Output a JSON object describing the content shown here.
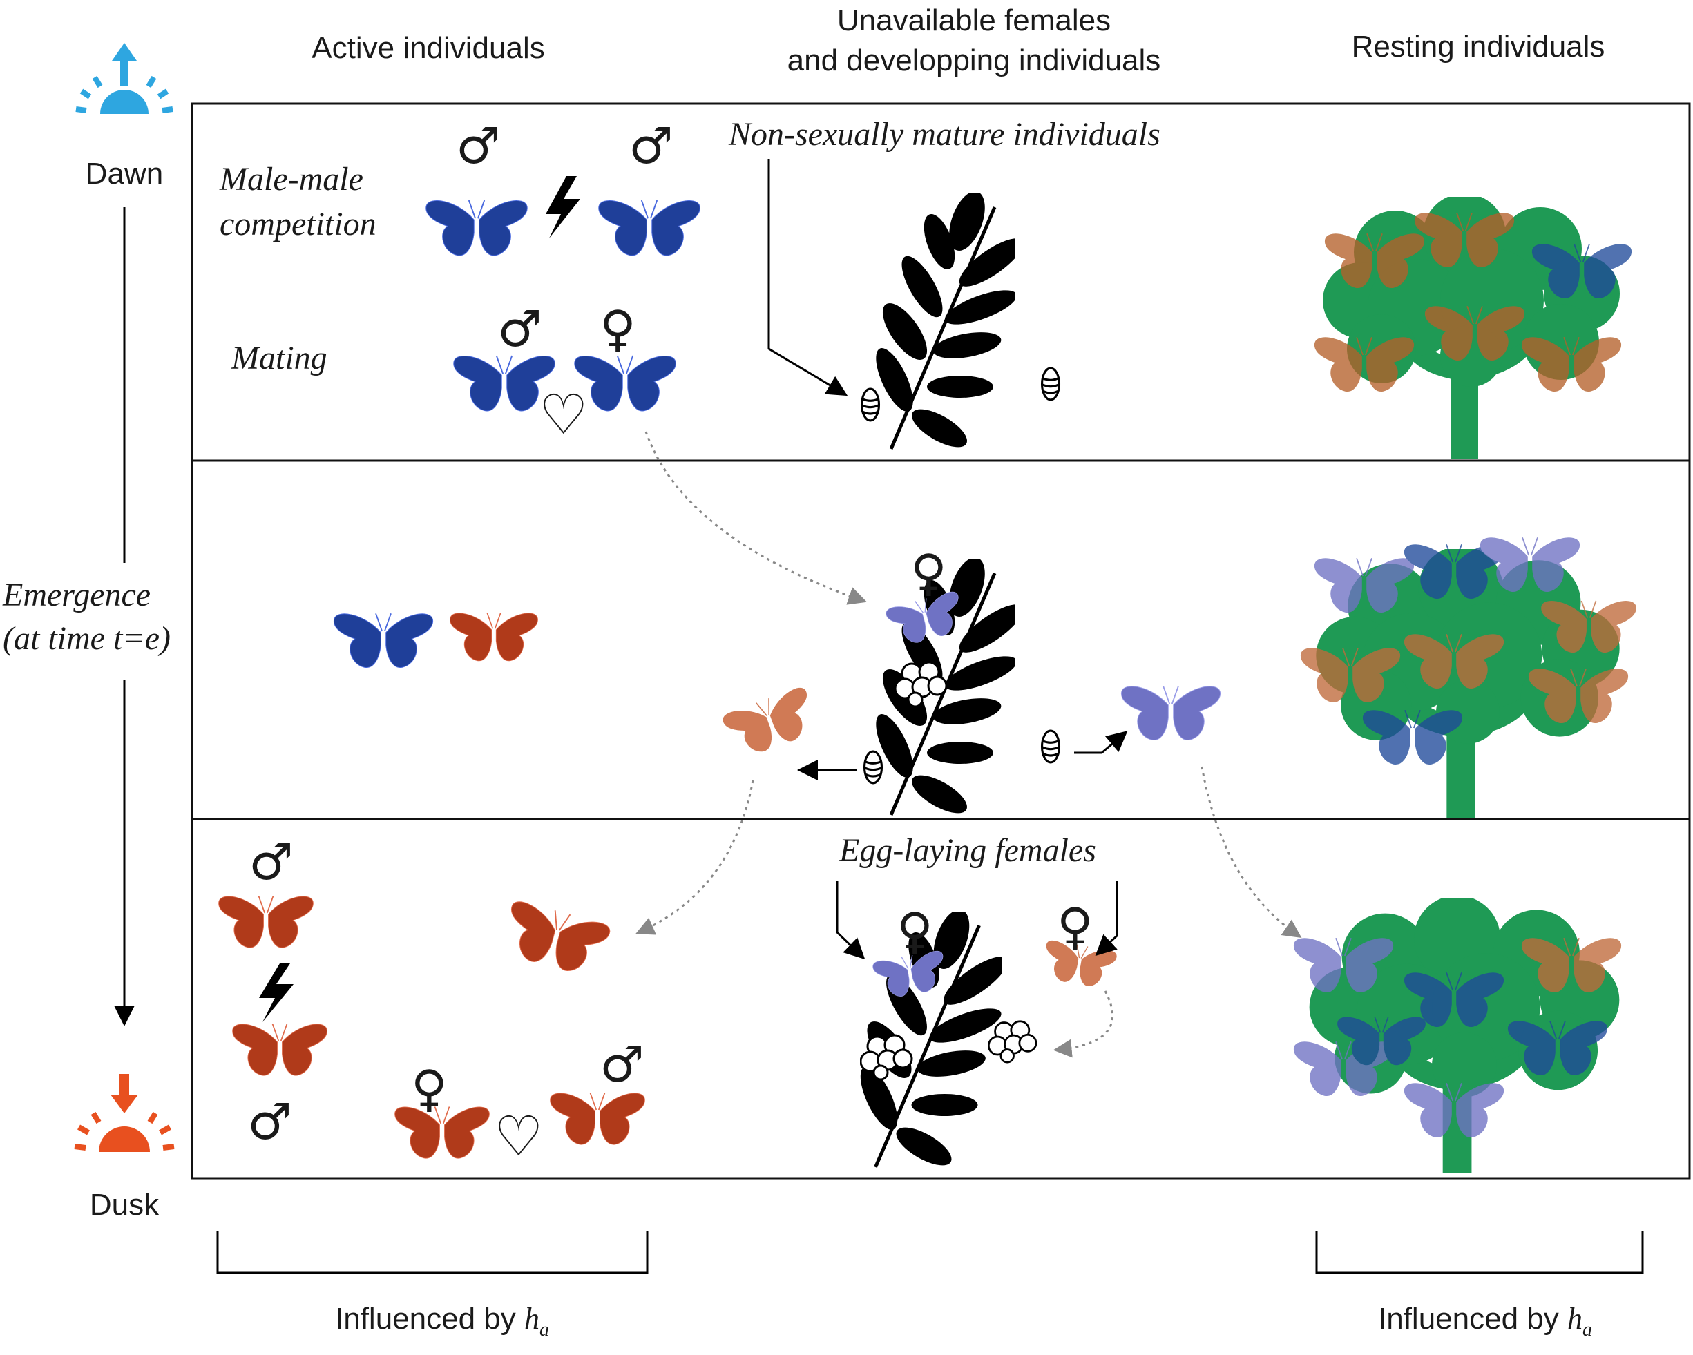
{
  "columns": {
    "active": "Active individuals",
    "unavailable_line1": "Unavailable females",
    "unavailable_line2": "and developping individuals",
    "resting": "Resting individuals"
  },
  "time_axis": {
    "dawn": "Dawn",
    "dusk": "Dusk",
    "emergence_line1": "Emergence",
    "emergence_line2": "(at time t=e)"
  },
  "panel1": {
    "male_male_line1": "Male-male",
    "male_male_line2": "competition",
    "mating": "Mating",
    "non_mature": "Non-sexually mature individuals"
  },
  "panel3": {
    "egg_laying": "Egg-laying females"
  },
  "footer": {
    "influenced_prefix": "Influenced by ",
    "h_symbol": "h",
    "h_subscript": "a"
  },
  "symbols": {
    "male": "♂",
    "female": "♀",
    "heart": "♡"
  },
  "colors": {
    "blue_butterfly": "#1f3f99",
    "red_butterfly": "#b03a1a",
    "light_blue_butterfly": "#6f72c4",
    "light_red_butterfly": "#d07a55",
    "tree": "#1f9a55",
    "dawn_sun": "#2ea6e0",
    "dusk_sun": "#e8501f"
  }
}
